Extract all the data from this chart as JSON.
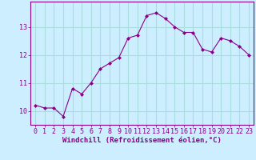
{
  "x": [
    0,
    1,
    2,
    3,
    4,
    5,
    6,
    7,
    8,
    9,
    10,
    11,
    12,
    13,
    14,
    15,
    16,
    17,
    18,
    19,
    20,
    21,
    22,
    23
  ],
  "y": [
    10.2,
    10.1,
    10.1,
    9.8,
    10.8,
    10.6,
    11.0,
    11.5,
    11.7,
    11.9,
    12.6,
    12.7,
    13.4,
    13.5,
    13.3,
    13.0,
    12.8,
    12.8,
    12.2,
    12.1,
    12.6,
    12.5,
    12.3,
    12.0
  ],
  "line_color": "#880088",
  "marker": "D",
  "marker_size": 2.0,
  "bg_color": "#cceeff",
  "grid_color": "#aadddd",
  "axis_color": "#880088",
  "xlabel": "Windchill (Refroidissement éolien,°C)",
  "xlabel_fontsize": 6.5,
  "tick_fontsize": 6.0,
  "ylim": [
    9.5,
    13.9
  ],
  "xlim": [
    -0.5,
    23.5
  ],
  "yticks": [
    10,
    11,
    12,
    13
  ],
  "xticks": [
    0,
    1,
    2,
    3,
    4,
    5,
    6,
    7,
    8,
    9,
    10,
    11,
    12,
    13,
    14,
    15,
    16,
    17,
    18,
    19,
    20,
    21,
    22,
    23
  ]
}
